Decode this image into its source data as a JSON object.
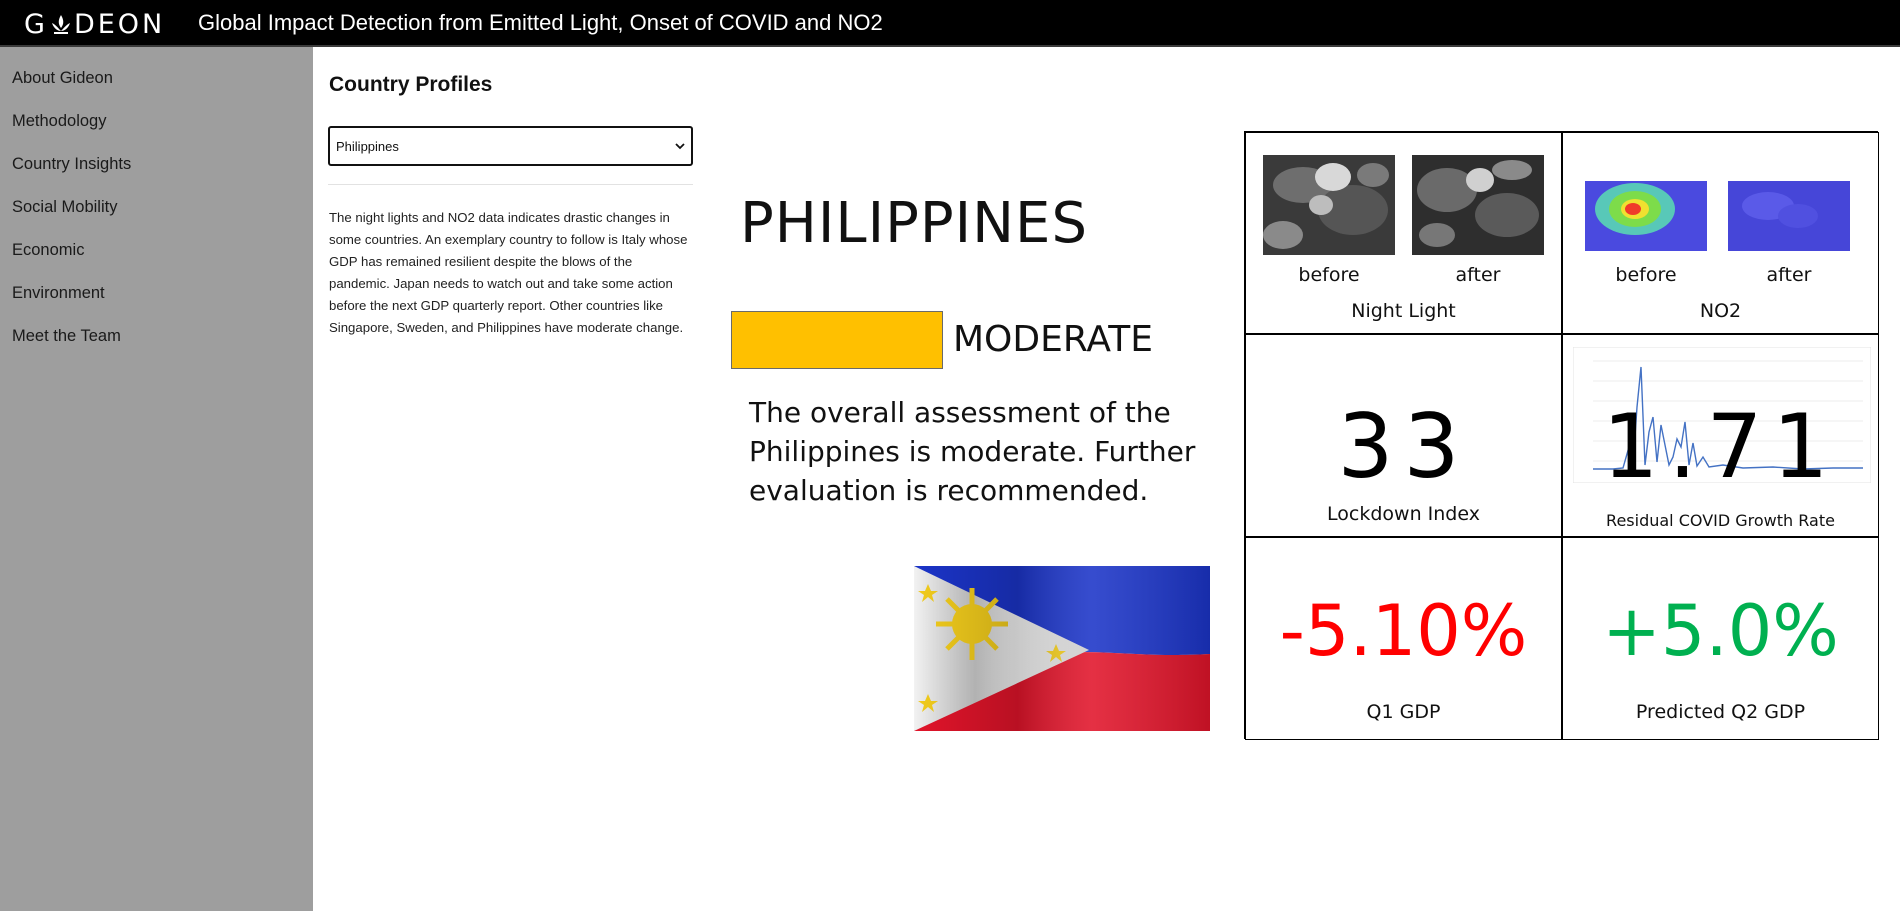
{
  "header": {
    "brand": "GIDEON",
    "title": "Global Impact Detection from Emitted Light, Onset of COVID and NO2"
  },
  "sidebar": {
    "items": [
      {
        "label": "About Gideon"
      },
      {
        "label": "Methodology"
      },
      {
        "label": "Country Insights"
      },
      {
        "label": "Social Mobility"
      },
      {
        "label": "Economic"
      },
      {
        "label": "Environment"
      },
      {
        "label": "Meet the Team"
      }
    ]
  },
  "main": {
    "title": "Country Profiles",
    "country_select": {
      "value": "Philippines"
    },
    "blurb": "The night lights and NO2 data indicates drastic changes in some countries. An exemplary country to follow is Italy whose GDP has remained resilient despite the blows of the pandemic. Japan needs to watch out and take some action before the next GDP quarterly report. Other countries like Singapore, Sweden, and Philippines have moderate change.",
    "country_name": "PHILIPPINES",
    "status": {
      "label": "MODERATE",
      "color": "#ffc000"
    },
    "assessment": "The overall assessment of the Philippines is moderate. Further evaluation is recommended."
  },
  "metrics": {
    "night_light": {
      "before_label": "before",
      "after_label": "after",
      "title": "Night Light"
    },
    "no2": {
      "before_label": "before",
      "after_label": "after",
      "title": "NO2"
    },
    "lockdown": {
      "value": "33",
      "title": "Lockdown Index"
    },
    "residual_growth": {
      "value": "1.71",
      "title": "Residual COVID Growth Rate"
    },
    "q1_gdp": {
      "value": "-5.10%",
      "title": "Q1 GDP",
      "color": "#ff0000"
    },
    "q2_gdp": {
      "value": "+5.0%",
      "title": "Predicted Q2 GDP",
      "color": "#00b050"
    }
  },
  "colors": {
    "header_bg": "#000000",
    "sidebar_bg": "#9e9e9e",
    "status_moderate": "#ffc000",
    "negative": "#ff0000",
    "positive": "#00b050"
  }
}
